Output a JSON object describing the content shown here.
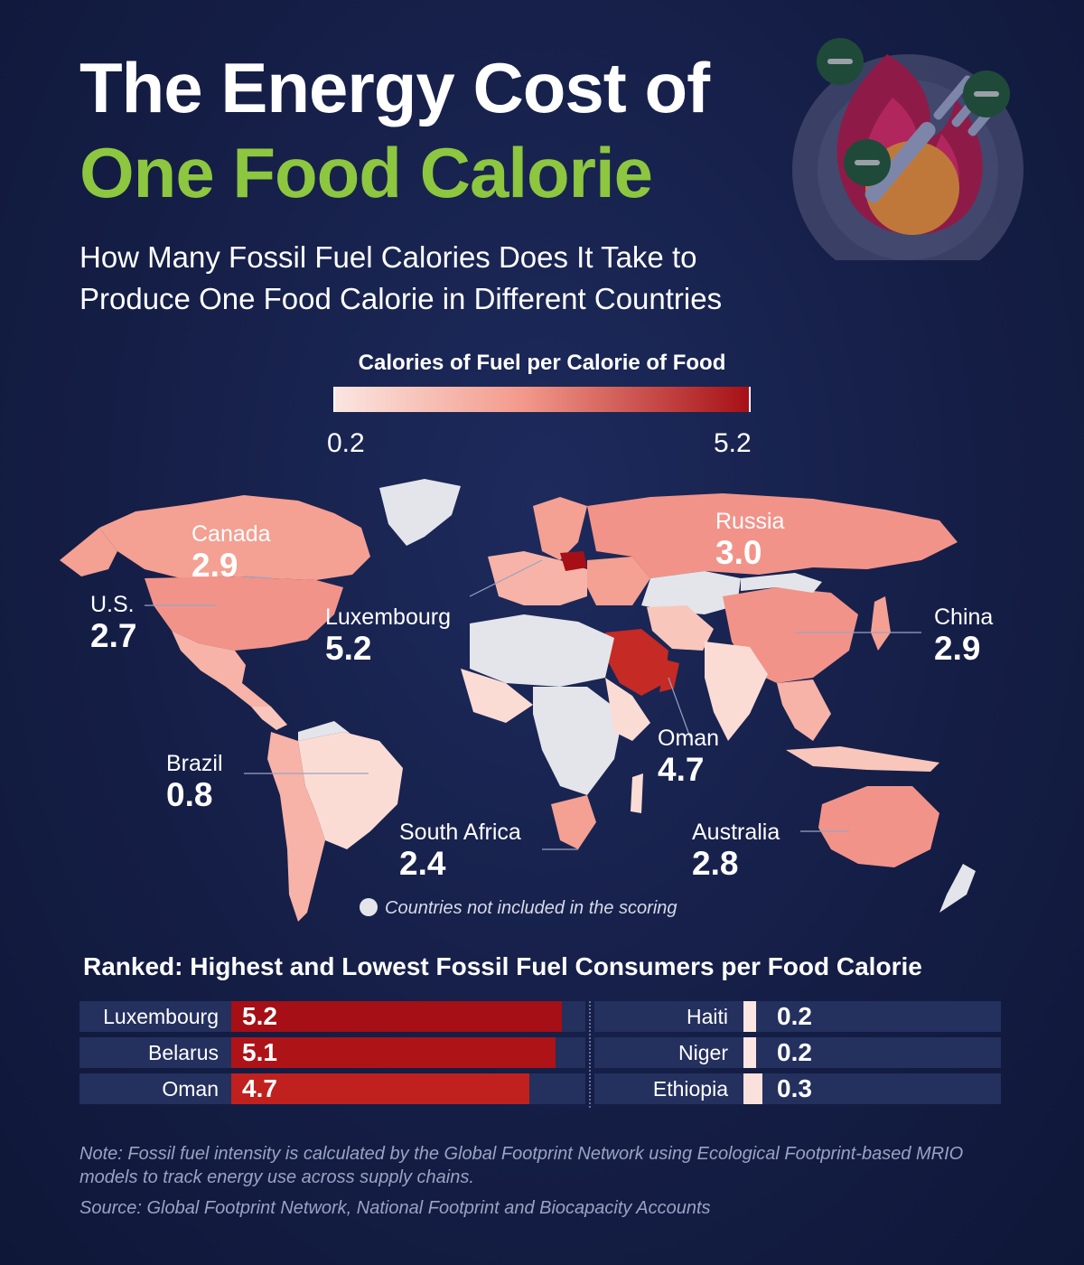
{
  "header": {
    "title_line1": "The Energy Cost of",
    "title_line2": "One Food Calorie",
    "subtitle_line1": "How Many Fossil Fuel Calories Does It Take to",
    "subtitle_line2": "Produce One Food Calorie in Different Countries"
  },
  "legend": {
    "title": "Calories of Fuel per Calorie of Food",
    "min": "0.2",
    "max": "5.2",
    "color_low": "#fbe6e1",
    "color_high": "#a50f15"
  },
  "colors": {
    "no_data": "#e3e5ea",
    "ocean": "#16204a",
    "title_accent": "#8dc63f"
  },
  "callouts": [
    {
      "name": "Canada",
      "value": "2.9"
    },
    {
      "name": "Russia",
      "value": "3.0"
    },
    {
      "name": "U.S.",
      "value": "2.7"
    },
    {
      "name": "Luxembourg",
      "value": "5.2"
    },
    {
      "name": "China",
      "value": "2.9"
    },
    {
      "name": "Oman",
      "value": "4.7"
    },
    {
      "name": "Brazil",
      "value": "0.8"
    },
    {
      "name": "South Africa",
      "value": "2.4"
    },
    {
      "name": "Australia",
      "value": "2.8"
    }
  ],
  "map_note": "Countries not included in the scoring",
  "ranked": {
    "title": "Ranked: Highest and Lowest Fossil Fuel Consumers per Food Calorie",
    "highest": [
      {
        "country": "Luxembourg",
        "value": "5.2"
      },
      {
        "country": "Belarus",
        "value": "5.1"
      },
      {
        "country": "Oman",
        "value": "4.7"
      }
    ],
    "lowest": [
      {
        "country": "Haiti",
        "value": "0.2"
      },
      {
        "country": "Niger",
        "value": "0.2"
      },
      {
        "country": "Ethiopia",
        "value": "0.3"
      }
    ]
  },
  "footnote": "Note: Fossil fuel intensity is calculated by the Global Footprint Network using Ecological Footprint-based MRIO models to track energy use across supply chains.",
  "source": "Source: Global Footprint Network, National Footprint and Biocapacity Accounts",
  "hero_icons": [
    "plate-icon",
    "flame-icon",
    "fork-icon",
    "minus-badge-icon"
  ]
}
